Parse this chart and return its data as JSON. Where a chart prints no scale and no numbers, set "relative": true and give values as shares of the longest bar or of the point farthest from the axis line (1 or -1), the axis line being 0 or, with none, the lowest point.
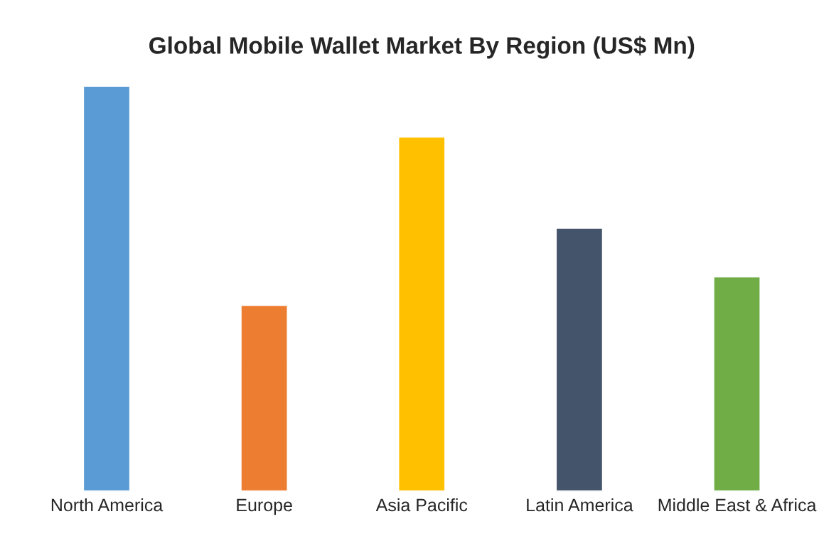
{
  "chart_data": {
    "type": "bar",
    "title": "Global Mobile Wallet Market By Region (US$ Mn)",
    "relative": true,
    "categories": [
      "North America",
      "Europe",
      "Asia Pacific",
      "Latin America",
      "Middle East & Africa"
    ],
    "values": [
      1,
      0.46,
      0.875,
      0.65,
      0.53
    ],
    "colors": [
      "#5b9bd5",
      "#ed7d31",
      "#ffc000",
      "#44546a",
      "#70ad47"
    ],
    "grid": false,
    "legend": false
  }
}
